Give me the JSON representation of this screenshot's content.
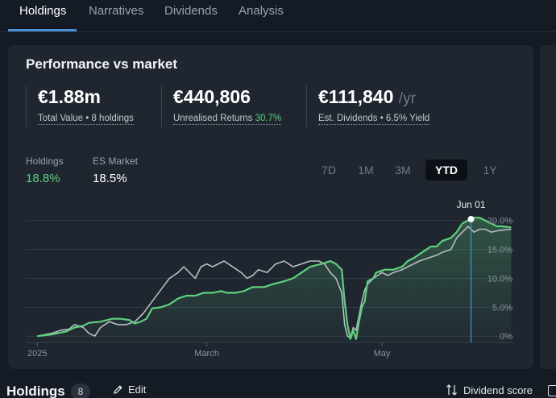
{
  "tabs": [
    {
      "label": "Holdings",
      "active": true
    },
    {
      "label": "Narratives",
      "active": false
    },
    {
      "label": "Dividends",
      "active": false
    },
    {
      "label": "Analysis",
      "active": false
    }
  ],
  "card": {
    "title": "Performance vs market",
    "stats": [
      {
        "value": "€1.88m",
        "unit": "",
        "label": "Total Value • 8 holdings",
        "highlight": ""
      },
      {
        "value": "€440,806",
        "unit": "",
        "label": "Unrealised Returns",
        "highlight": "30.7%"
      },
      {
        "value": "€111,840",
        "unit": "/yr",
        "label": "Est. Dividends • 6.5% Yield",
        "highlight": ""
      }
    ],
    "legend": [
      {
        "name": "Holdings",
        "value": "18.8%",
        "color": "#5fd07e"
      },
      {
        "name": "ES Market",
        "value": "18.5%",
        "color": "#ffffff"
      }
    ],
    "periods": [
      {
        "label": "7D",
        "active": false
      },
      {
        "label": "1M",
        "active": false
      },
      {
        "label": "3M",
        "active": false
      },
      {
        "label": "YTD",
        "active": true
      },
      {
        "label": "1Y",
        "active": false
      }
    ]
  },
  "chart_data": {
    "type": "line",
    "x_unit": "day-of-year (2025)",
    "x_ticks": [
      {
        "label": "2025",
        "x": 0
      },
      {
        "label": "March",
        "x": 59
      },
      {
        "label": "May",
        "x": 120
      }
    ],
    "y_ticks": [
      0,
      5,
      10,
      15,
      20
    ],
    "y_tick_format": "{v}.0%",
    "y_tick_format_zero": "0%",
    "ylim": [
      -1.5,
      20.8
    ],
    "xlim": [
      -4,
      166
    ],
    "marker_label": "Jun 01",
    "marker_x": 151,
    "series": [
      {
        "name": "Holdings",
        "color": "#5fd07e",
        "points": [
          [
            0,
            0
          ],
          [
            5,
            0.3
          ],
          [
            10,
            0.8
          ],
          [
            13,
            1.5
          ],
          [
            16,
            1.8
          ],
          [
            18,
            2.3
          ],
          [
            22,
            2.5
          ],
          [
            26,
            3.0
          ],
          [
            29,
            3.0
          ],
          [
            32,
            2.8
          ],
          [
            34,
            2.2
          ],
          [
            36,
            2.5
          ],
          [
            38,
            3.0
          ],
          [
            40,
            4.8
          ],
          [
            43,
            5.0
          ],
          [
            46,
            5.5
          ],
          [
            49,
            6.5
          ],
          [
            52,
            7.0
          ],
          [
            55,
            7.0
          ],
          [
            58,
            7.5
          ],
          [
            61,
            7.5
          ],
          [
            64,
            7.8
          ],
          [
            66,
            7.5
          ],
          [
            69,
            7.5
          ],
          [
            72,
            7.8
          ],
          [
            75,
            8.5
          ],
          [
            79,
            8.5
          ],
          [
            82,
            9.0
          ],
          [
            86,
            9.5
          ],
          [
            89,
            10.0
          ],
          [
            92,
            11.0
          ],
          [
            95,
            12.0
          ],
          [
            99,
            12.5
          ],
          [
            102,
            13.0
          ],
          [
            104,
            12.5
          ],
          [
            106,
            11.5
          ],
          [
            107,
            6.0
          ],
          [
            108,
            2.0
          ],
          [
            109,
            -0.5
          ],
          [
            110,
            1.0
          ],
          [
            111,
            -0.5
          ],
          [
            112,
            2.5
          ],
          [
            113,
            5.0
          ],
          [
            114,
            6.0
          ],
          [
            115,
            9.5
          ],
          [
            117,
            10.0
          ],
          [
            118,
            11.0
          ],
          [
            121,
            11.5
          ],
          [
            124,
            11.5
          ],
          [
            127,
            12.0
          ],
          [
            129,
            13.0
          ],
          [
            131,
            13.5
          ],
          [
            134,
            14.5
          ],
          [
            137,
            15.5
          ],
          [
            139,
            15.5
          ],
          [
            141,
            16.5
          ],
          [
            144,
            17.0
          ],
          [
            146,
            18.0
          ],
          [
            148,
            19.5
          ],
          [
            150,
            20.0
          ],
          [
            152,
            20.5
          ],
          [
            154,
            20.5
          ],
          [
            156,
            20.0
          ],
          [
            158,
            19.5
          ],
          [
            160,
            19.0
          ],
          [
            162,
            19.0
          ],
          [
            165,
            18.8
          ]
        ]
      },
      {
        "name": "ES Market",
        "color": "#b8bdc4",
        "points": [
          [
            0,
            0
          ],
          [
            5,
            0.5
          ],
          [
            8,
            1.0
          ],
          [
            11,
            1.2
          ],
          [
            13,
            2.0
          ],
          [
            16,
            1.5
          ],
          [
            18,
            0.5
          ],
          [
            20,
            0.0
          ],
          [
            22,
            1.5
          ],
          [
            25,
            2.5
          ],
          [
            28,
            2.0
          ],
          [
            31,
            2.0
          ],
          [
            34,
            2.5
          ],
          [
            37,
            4.0
          ],
          [
            40,
            6.0
          ],
          [
            43,
            8.0
          ],
          [
            46,
            10.0
          ],
          [
            49,
            11.0
          ],
          [
            51,
            12.0
          ],
          [
            53,
            11.0
          ],
          [
            55,
            10.0
          ],
          [
            57,
            12.0
          ],
          [
            59,
            12.5
          ],
          [
            61,
            12.0
          ],
          [
            63,
            12.5
          ],
          [
            65,
            13.0
          ],
          [
            68,
            12.0
          ],
          [
            71,
            11.0
          ],
          [
            73,
            10.0
          ],
          [
            75,
            10.5
          ],
          [
            77,
            11.5
          ],
          [
            80,
            11.0
          ],
          [
            83,
            12.5
          ],
          [
            86,
            13.0
          ],
          [
            89,
            12.0
          ],
          [
            92,
            12.5
          ],
          [
            95,
            13.0
          ],
          [
            98,
            13.0
          ],
          [
            100,
            12.5
          ],
          [
            102,
            11.0
          ],
          [
            104,
            10.0
          ],
          [
            106,
            7.5
          ],
          [
            107,
            2.0
          ],
          [
            108,
            0.0
          ],
          [
            109,
            -0.3
          ],
          [
            110,
            1.5
          ],
          [
            111,
            1.0
          ],
          [
            112,
            3.5
          ],
          [
            113,
            6.0
          ],
          [
            114,
            8.0
          ],
          [
            115,
            9.0
          ],
          [
            117,
            10.0
          ],
          [
            120,
            11.0
          ],
          [
            122,
            10.5
          ],
          [
            124,
            11.0
          ],
          [
            127,
            11.5
          ],
          [
            129,
            12.0
          ],
          [
            131,
            12.5
          ],
          [
            133,
            13.0
          ],
          [
            136,
            13.5
          ],
          [
            139,
            14.0
          ],
          [
            141,
            14.5
          ],
          [
            144,
            15.0
          ],
          [
            146,
            17.0
          ],
          [
            148,
            18.0
          ],
          [
            150,
            19.0
          ],
          [
            152,
            18.0
          ],
          [
            154,
            18.5
          ],
          [
            156,
            18.5
          ],
          [
            158,
            18.0
          ],
          [
            161,
            18.3
          ],
          [
            165,
            18.5
          ]
        ]
      }
    ]
  },
  "footer": {
    "title": "Holdings",
    "count": "8",
    "edit_label": "Edit",
    "sort_label": "Dividend score"
  },
  "icons": {
    "edit": "pencil-icon",
    "sort": "sort-arrows-icon",
    "view": "layout-view-icon"
  }
}
